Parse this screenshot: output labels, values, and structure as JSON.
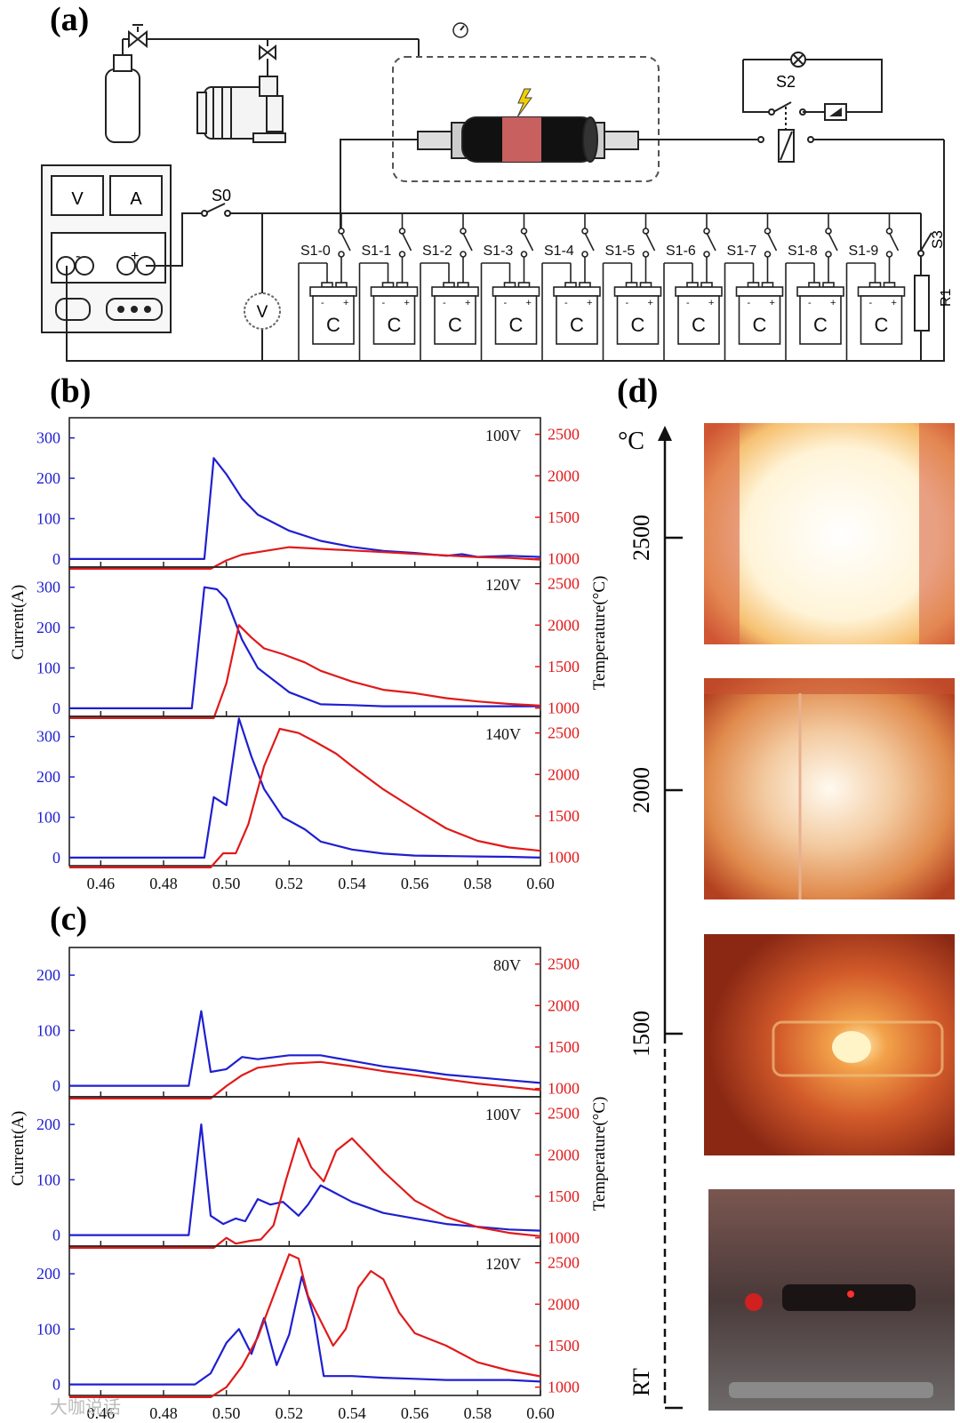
{
  "panels": {
    "a": "(a)",
    "b": "(b)",
    "c": "(c)",
    "d": "(d)"
  },
  "circuit": {
    "meter_v": "V",
    "meter_a": "A",
    "minus": "-",
    "plus": "+",
    "s0": "S0",
    "s2": "S2",
    "s3": "S3",
    "r1": "R1",
    "voltmeter": "V",
    "switch_labels": [
      "S1-0",
      "S1-1",
      "S1-2",
      "S1-3",
      "S1-4",
      "S1-5",
      "S1-6",
      "S1-7",
      "S1-8",
      "S1-9"
    ],
    "cap_label": "C"
  },
  "colors": {
    "current": "#1f1fd0",
    "temperature": "#e01a1a",
    "axis": "#222222"
  },
  "axes": {
    "current_label": "Current(A)",
    "temperature_label": "Temperature(°C)",
    "x_ticks": [
      "0.46",
      "0.48",
      "0.50",
      "0.52",
      "0.54",
      "0.56",
      "0.58",
      "0.60"
    ],
    "t_ticks": [
      "1000",
      "1500",
      "2000",
      "2500"
    ]
  },
  "temperature_scale": {
    "unit": "°C",
    "ticks": [
      "2500",
      "2000",
      "1500",
      "RT"
    ]
  },
  "watermark": "大咖说话",
  "chart_data": [
    {
      "type": "line",
      "panel": "b",
      "label": "100V",
      "xlim": [
        0.45,
        0.6
      ],
      "ylim_current": [
        -20,
        350
      ],
      "ylim_temp": [
        900,
        2700
      ],
      "yticks": [
        0,
        100,
        200,
        300
      ],
      "series": [
        {
          "name": "Current",
          "axis": "current",
          "x": [
            0.45,
            0.493,
            0.496,
            0.5,
            0.505,
            0.51,
            0.52,
            0.53,
            0.54,
            0.55,
            0.56,
            0.57,
            0.575,
            0.58,
            0.59,
            0.6
          ],
          "values": [
            0,
            0,
            250,
            210,
            150,
            110,
            70,
            45,
            30,
            20,
            15,
            8,
            12,
            5,
            8,
            5
          ]
        },
        {
          "name": "Temperature",
          "axis": "temp",
          "x": [
            0.45,
            0.495,
            0.5,
            0.505,
            0.51,
            0.52,
            0.53,
            0.54,
            0.55,
            0.56,
            0.57,
            0.58,
            0.59,
            0.6
          ],
          "values": [
            880,
            880,
            980,
            1050,
            1080,
            1140,
            1120,
            1100,
            1080,
            1060,
            1040,
            1020,
            1010,
            990
          ]
        }
      ]
    },
    {
      "type": "line",
      "panel": "b",
      "label": "120V",
      "xlim": [
        0.45,
        0.6
      ],
      "ylim_current": [
        -20,
        350
      ],
      "ylim_temp": [
        900,
        2700
      ],
      "yticks": [
        0,
        100,
        200,
        300
      ],
      "series": [
        {
          "name": "Current",
          "axis": "current",
          "x": [
            0.45,
            0.489,
            0.493,
            0.497,
            0.5,
            0.505,
            0.51,
            0.52,
            0.53,
            0.54,
            0.55,
            0.56,
            0.57,
            0.58,
            0.59,
            0.6
          ],
          "values": [
            0,
            0,
            300,
            295,
            270,
            170,
            100,
            40,
            10,
            8,
            5,
            5,
            5,
            5,
            5,
            5
          ]
        },
        {
          "name": "Temperature",
          "axis": "temp",
          "x": [
            0.45,
            0.496,
            0.5,
            0.504,
            0.508,
            0.512,
            0.518,
            0.525,
            0.53,
            0.54,
            0.55,
            0.56,
            0.57,
            0.58,
            0.59,
            0.6
          ],
          "values": [
            880,
            880,
            1300,
            2000,
            1850,
            1720,
            1650,
            1550,
            1450,
            1320,
            1220,
            1180,
            1120,
            1080,
            1050,
            1030
          ]
        }
      ]
    },
    {
      "type": "line",
      "panel": "b",
      "label": "140V",
      "xlim": [
        0.45,
        0.6
      ],
      "ylim_current": [
        -20,
        350
      ],
      "ylim_temp": [
        900,
        2700
      ],
      "yticks": [
        0,
        100,
        200,
        300
      ],
      "series": [
        {
          "name": "Current",
          "axis": "current",
          "x": [
            0.45,
            0.493,
            0.496,
            0.5,
            0.504,
            0.508,
            0.512,
            0.518,
            0.525,
            0.53,
            0.54,
            0.55,
            0.56,
            0.57,
            0.58,
            0.59,
            0.6
          ],
          "values": [
            0,
            0,
            150,
            130,
            345,
            250,
            170,
            100,
            70,
            40,
            20,
            10,
            5,
            4,
            3,
            2,
            0
          ]
        },
        {
          "name": "Temperature",
          "axis": "temp",
          "x": [
            0.45,
            0.495,
            0.499,
            0.503,
            0.507,
            0.512,
            0.517,
            0.523,
            0.528,
            0.535,
            0.54,
            0.55,
            0.56,
            0.57,
            0.58,
            0.59,
            0.6
          ],
          "values": [
            880,
            880,
            1050,
            1050,
            1400,
            2100,
            2550,
            2500,
            2400,
            2250,
            2100,
            1820,
            1580,
            1350,
            1200,
            1120,
            1080
          ]
        }
      ]
    },
    {
      "type": "line",
      "panel": "c",
      "label": "80V",
      "xlim": [
        0.45,
        0.6
      ],
      "ylim_current": [
        -20,
        250
      ],
      "ylim_temp": [
        900,
        2700
      ],
      "yticks": [
        0,
        100,
        200
      ],
      "series": [
        {
          "name": "Current",
          "axis": "current",
          "x": [
            0.45,
            0.488,
            0.492,
            0.495,
            0.5,
            0.505,
            0.51,
            0.52,
            0.53,
            0.54,
            0.55,
            0.56,
            0.57,
            0.58,
            0.59,
            0.6
          ],
          "values": [
            0,
            0,
            135,
            25,
            30,
            52,
            48,
            55,
            55,
            45,
            35,
            28,
            20,
            15,
            10,
            5
          ]
        },
        {
          "name": "Temperature",
          "axis": "temp",
          "x": [
            0.45,
            0.495,
            0.5,
            0.505,
            0.51,
            0.52,
            0.53,
            0.54,
            0.55,
            0.56,
            0.57,
            0.58,
            0.59,
            0.6
          ],
          "values": [
            880,
            880,
            1030,
            1160,
            1250,
            1300,
            1320,
            1270,
            1210,
            1160,
            1110,
            1060,
            1020,
            980
          ]
        }
      ]
    },
    {
      "type": "line",
      "panel": "c",
      "label": "100V",
      "xlim": [
        0.45,
        0.6
      ],
      "ylim_current": [
        -20,
        250
      ],
      "ylim_temp": [
        900,
        2700
      ],
      "yticks": [
        0,
        100,
        200
      ],
      "series": [
        {
          "name": "Current",
          "axis": "current",
          "x": [
            0.45,
            0.488,
            0.492,
            0.495,
            0.499,
            0.503,
            0.506,
            0.51,
            0.514,
            0.518,
            0.523,
            0.526,
            0.53,
            0.535,
            0.54,
            0.55,
            0.56,
            0.57,
            0.58,
            0.59,
            0.6
          ],
          "values": [
            0,
            0,
            200,
            35,
            20,
            30,
            25,
            65,
            55,
            60,
            35,
            55,
            90,
            75,
            60,
            40,
            30,
            20,
            15,
            10,
            8
          ]
        },
        {
          "name": "Temperature",
          "axis": "temp",
          "x": [
            0.45,
            0.496,
            0.5,
            0.503,
            0.507,
            0.511,
            0.515,
            0.519,
            0.523,
            0.527,
            0.531,
            0.535,
            0.54,
            0.545,
            0.55,
            0.56,
            0.57,
            0.58,
            0.59,
            0.6
          ],
          "values": [
            880,
            880,
            1000,
            930,
            960,
            980,
            1150,
            1700,
            2200,
            1850,
            1680,
            2050,
            2200,
            2000,
            1800,
            1450,
            1250,
            1130,
            1060,
            1020
          ]
        }
      ]
    },
    {
      "type": "line",
      "panel": "c",
      "label": "120V",
      "xlim": [
        0.45,
        0.6
      ],
      "ylim_current": [
        -20,
        250
      ],
      "ylim_temp": [
        900,
        2700
      ],
      "yticks": [
        0,
        100,
        200
      ],
      "series": [
        {
          "name": "Current",
          "axis": "current",
          "x": [
            0.45,
            0.49,
            0.495,
            0.5,
            0.504,
            0.508,
            0.512,
            0.516,
            0.52,
            0.524,
            0.528,
            0.531,
            0.54,
            0.55,
            0.56,
            0.57,
            0.58,
            0.59,
            0.6
          ],
          "values": [
            0,
            0,
            20,
            75,
            100,
            55,
            120,
            35,
            90,
            195,
            120,
            15,
            15,
            12,
            10,
            8,
            8,
            8,
            5
          ]
        },
        {
          "name": "Temperature",
          "axis": "temp",
          "x": [
            0.45,
            0.495,
            0.5,
            0.505,
            0.51,
            0.515,
            0.52,
            0.523,
            0.526,
            0.53,
            0.534,
            0.538,
            0.542,
            0.546,
            0.55,
            0.555,
            0.56,
            0.57,
            0.58,
            0.59,
            0.6
          ],
          "values": [
            880,
            880,
            1000,
            1250,
            1600,
            2100,
            2600,
            2550,
            2100,
            1800,
            1500,
            1700,
            2200,
            2400,
            2300,
            1900,
            1650,
            1500,
            1300,
            1200,
            1130
          ]
        }
      ]
    }
  ]
}
